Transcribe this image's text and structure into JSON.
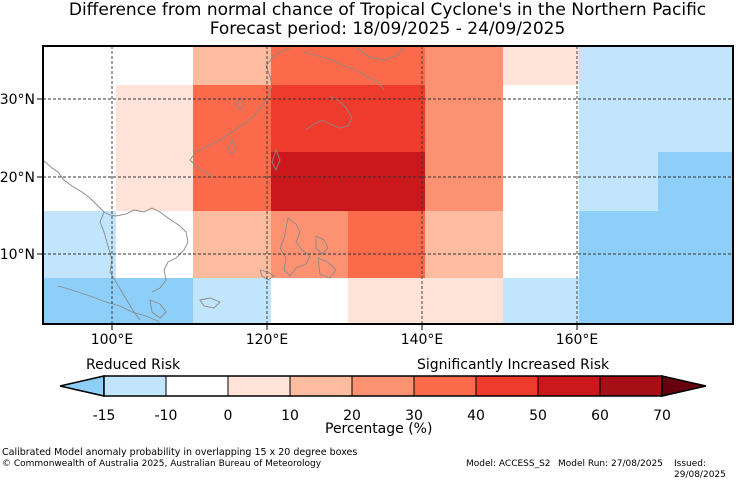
{
  "title": {
    "line1": "Difference from normal chance of Tropical Cyclone's in the Northern Pacific",
    "line2": "Forecast period: 18/09/2025 - 24/09/2025"
  },
  "map": {
    "lon_ticks": [
      "100°E",
      "120°E",
      "140°E",
      "160°E"
    ],
    "lat_ticks": [
      "30°N",
      "20°N",
      "10°N"
    ]
  },
  "legend": {
    "left_label": "Reduced Risk",
    "right_label": "Significantly Increased Risk",
    "ticks": [
      "-15",
      "-10",
      "0",
      "10",
      "20",
      "30",
      "40",
      "50",
      "60",
      "70"
    ],
    "axis_label": "Percentage (%)",
    "colors": [
      "#8dcff8",
      "#c1e5fc",
      "#ffffff",
      "#ffe2d8",
      "#fdbba0",
      "#fc9272",
      "#fb6a4a",
      "#ef3b2c",
      "#cb181d",
      "#a50f15",
      "#67000d"
    ]
  },
  "footer": {
    "note": "Calibrated Model anomaly probability in overlapping 15 x 20 degree boxes",
    "copyright": "© Commonwealth of Australia 2025, Australian Bureau of Meteorology",
    "model": "Model: ACCESS_S2",
    "run": "Model Run: 27/08/2025",
    "issued": "Issued: 29/08/2025"
  }
}
